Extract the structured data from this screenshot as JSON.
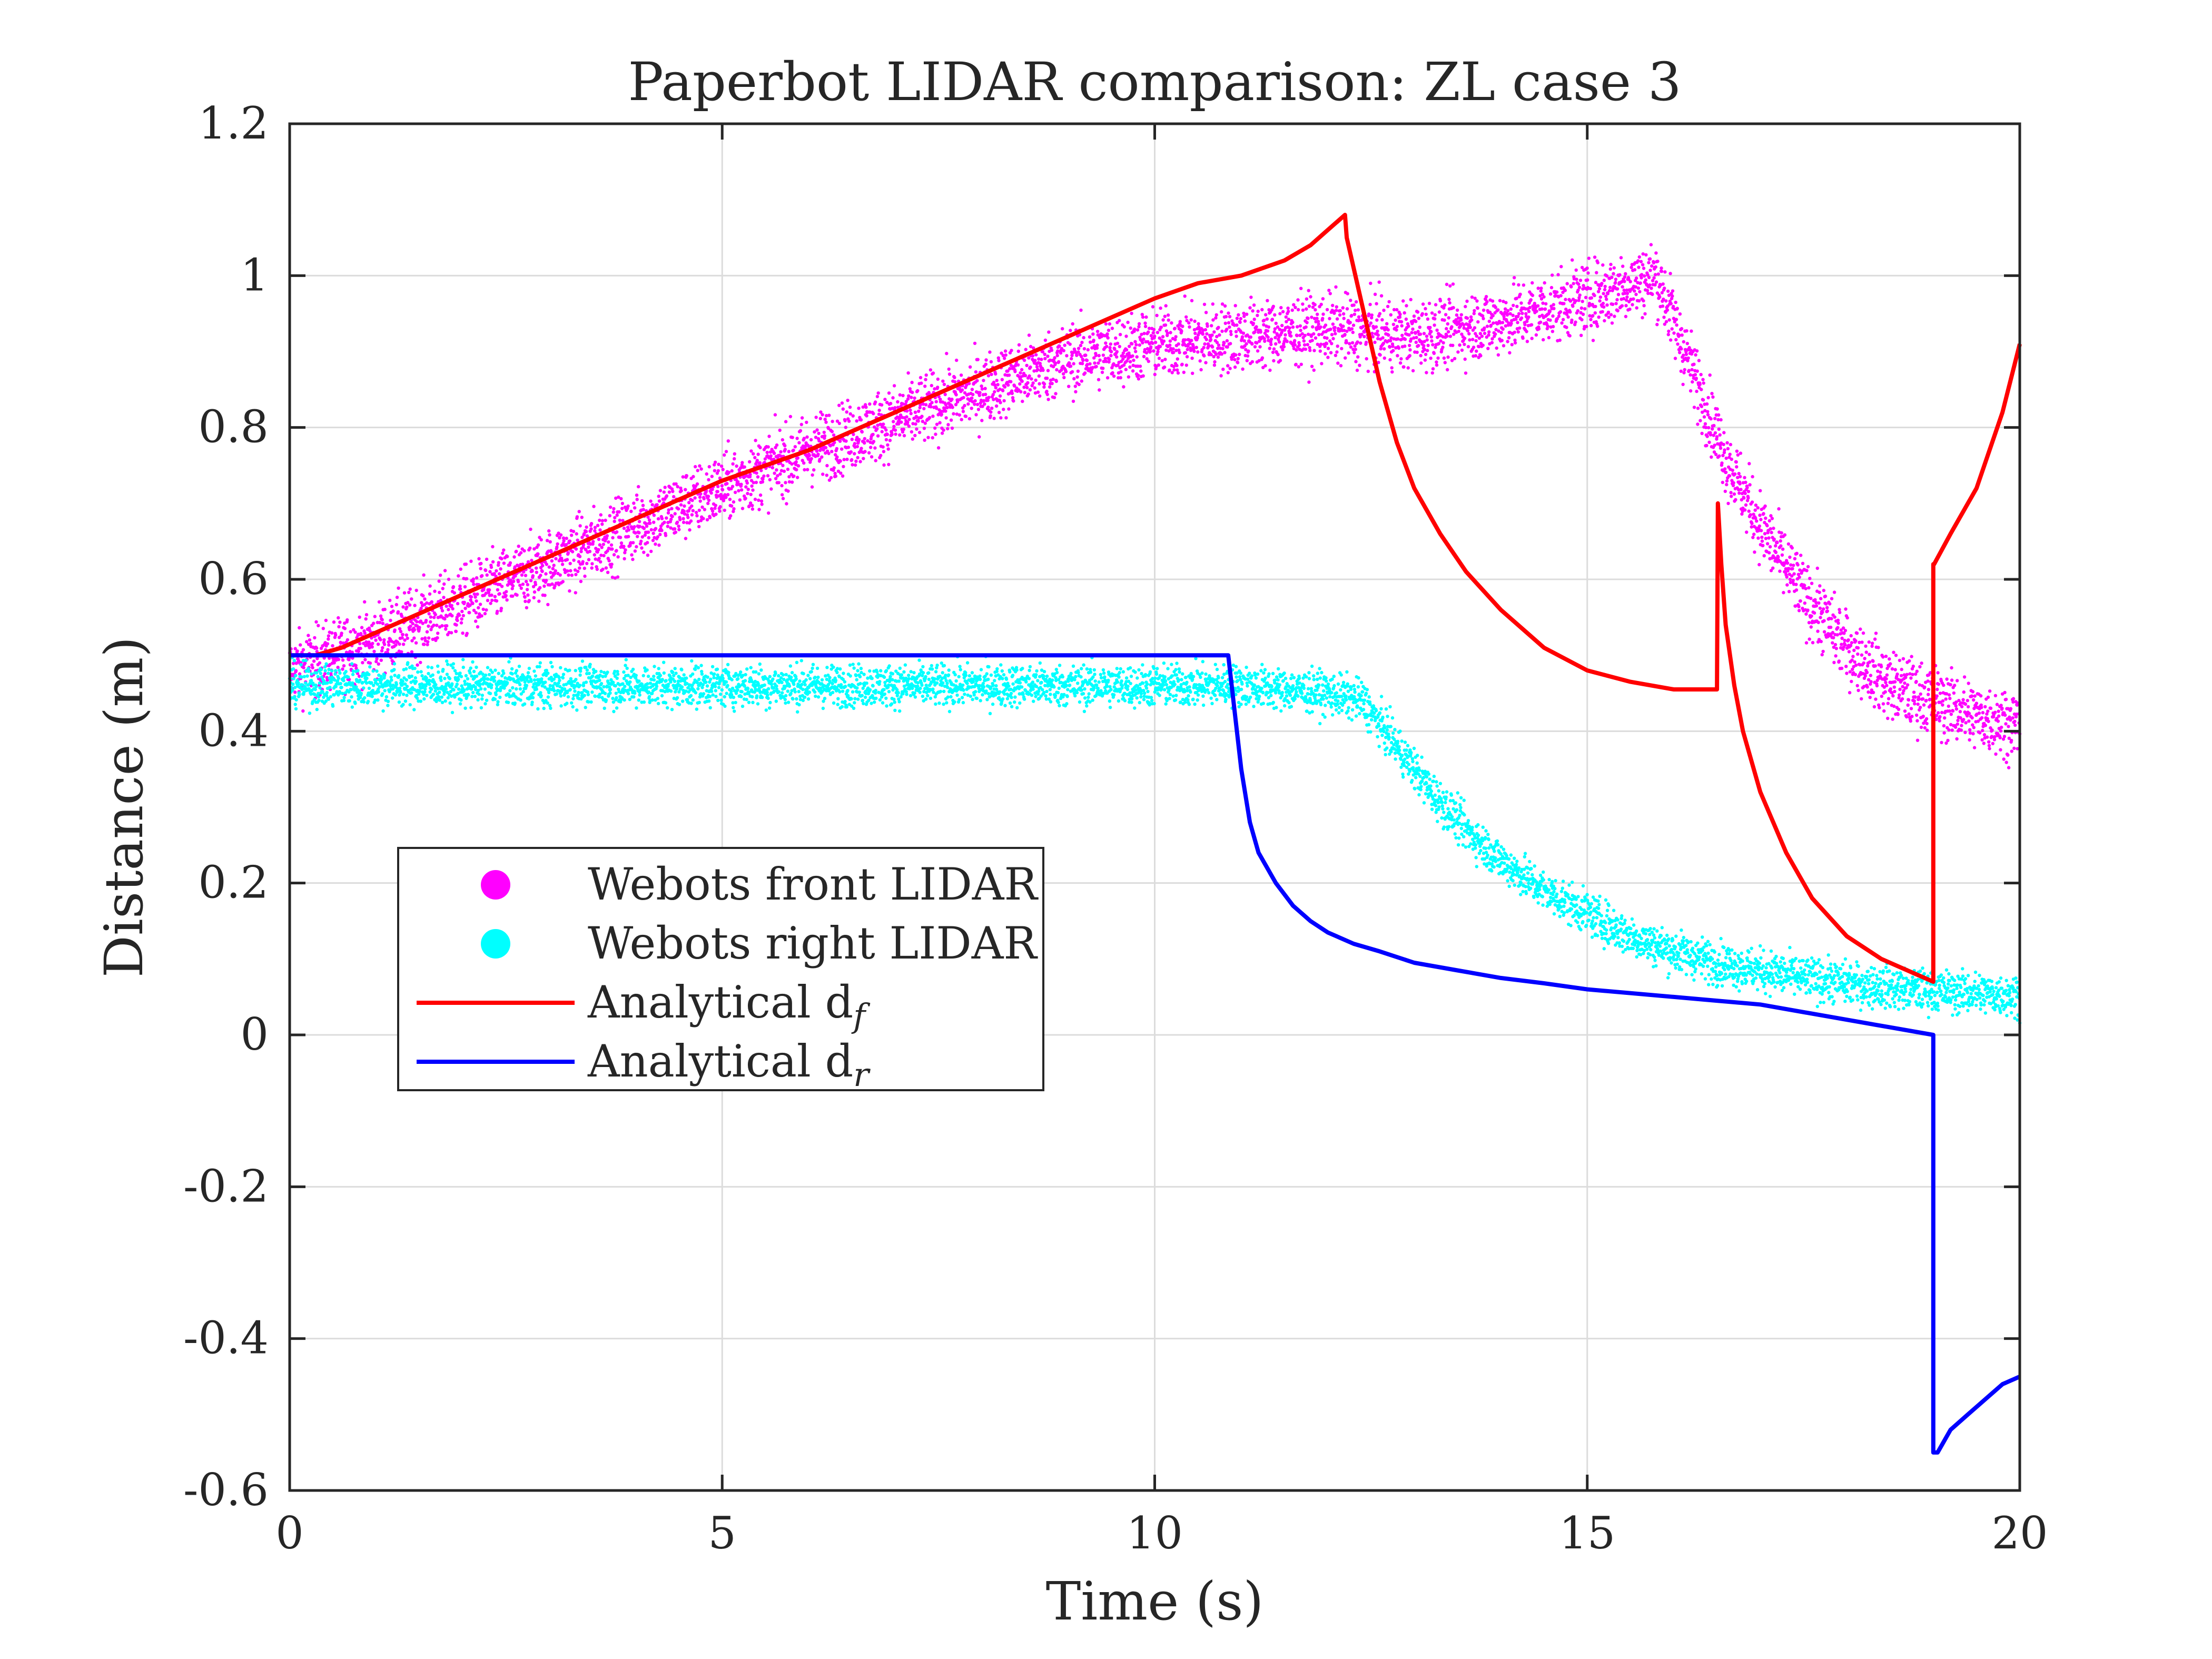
{
  "chart_data": {
    "type": "scatter",
    "title": "Paperbot LIDAR comparison: ZL case 3",
    "xlabel": "Time (s)",
    "ylabel": "Distance (m)",
    "xlim": [
      0,
      20
    ],
    "ylim": [
      -0.6,
      1.2
    ],
    "x_ticks": [
      0,
      5,
      10,
      15,
      20
    ],
    "x_tick_labels": [
      "0",
      "5",
      "10",
      "15",
      "20"
    ],
    "y_ticks": [
      -0.6,
      -0.4,
      -0.2,
      0,
      0.2,
      0.4,
      0.6,
      0.8,
      1,
      1.2
    ],
    "y_tick_labels": [
      "-0.6",
      "-0.4",
      "-0.2",
      "0",
      "0.2",
      "0.4",
      "0.6",
      "0.8",
      "1",
      "1.2"
    ],
    "grid": true,
    "legend_position": "center-left",
    "series": [
      {
        "name": "Webots front LIDAR",
        "kind": "scatter",
        "color": "#ff00ff",
        "noise_band": 0.05,
        "x": [
          0,
          1,
          2,
          3,
          4,
          5,
          6,
          7,
          8,
          9,
          10,
          11,
          12,
          13,
          14,
          15,
          15.8,
          16.2,
          16.6,
          17,
          17.5,
          18,
          18.5,
          19,
          19.5,
          20
        ],
        "y": [
          0.48,
          0.52,
          0.57,
          0.62,
          0.67,
          0.72,
          0.77,
          0.81,
          0.85,
          0.89,
          0.91,
          0.92,
          0.93,
          0.92,
          0.94,
          0.97,
          1.0,
          0.88,
          0.76,
          0.67,
          0.58,
          0.51,
          0.46,
          0.44,
          0.42,
          0.41
        ]
      },
      {
        "name": "Webots right LIDAR",
        "kind": "scatter",
        "color": "#00ffff",
        "noise_band": 0.03,
        "x": [
          0,
          2,
          4,
          6,
          8,
          10,
          11,
          12,
          12.4,
          12.8,
          13.2,
          13.6,
          14,
          14.5,
          15,
          15.5,
          16,
          16.5,
          17,
          17.5,
          18,
          18.5,
          19,
          19.5,
          20
        ],
        "y": [
          0.46,
          0.46,
          0.46,
          0.46,
          0.46,
          0.46,
          0.46,
          0.45,
          0.44,
          0.38,
          0.32,
          0.27,
          0.23,
          0.19,
          0.16,
          0.13,
          0.11,
          0.095,
          0.085,
          0.075,
          0.068,
          0.062,
          0.058,
          0.055,
          0.052
        ]
      },
      {
        "name": "Analytical d",
        "subscript": "f",
        "kind": "line",
        "color": "#ff0000",
        "x": [
          0,
          0.3,
          0.6,
          1,
          2,
          3,
          4,
          5,
          6,
          7,
          8,
          9,
          10,
          10.5,
          11,
          11.5,
          11.8,
          12.0,
          12.2,
          12.22,
          12.4,
          12.6,
          12.8,
          13.0,
          13.3,
          13.6,
          14.0,
          14.5,
          15.0,
          15.5,
          16.0,
          16.5,
          16.51,
          16.55,
          16.6,
          16.7,
          16.8,
          17.0,
          17.3,
          17.6,
          18.0,
          18.4,
          18.8,
          19.0,
          19.0,
          19.01,
          19.2,
          19.5,
          19.8,
          20.0
        ],
        "y": [
          0.5,
          0.5,
          0.51,
          0.53,
          0.58,
          0.63,
          0.68,
          0.73,
          0.77,
          0.82,
          0.87,
          0.92,
          0.97,
          0.99,
          1.0,
          1.02,
          1.04,
          1.06,
          1.08,
          1.05,
          0.96,
          0.86,
          0.78,
          0.72,
          0.66,
          0.61,
          0.56,
          0.51,
          0.48,
          0.465,
          0.455,
          0.455,
          0.7,
          0.62,
          0.54,
          0.46,
          0.4,
          0.32,
          0.24,
          0.18,
          0.13,
          0.1,
          0.08,
          0.07,
          0.62,
          0.62,
          0.66,
          0.72,
          0.82,
          0.91
        ]
      },
      {
        "name": "Analytical d",
        "subscript": "r",
        "kind": "line",
        "color": "#0000ff",
        "x": [
          0,
          2,
          4,
          6,
          8,
          10,
          10.6,
          10.85,
          10.9,
          11.0,
          11.1,
          11.2,
          11.4,
          11.6,
          11.8,
          12.0,
          12.3,
          12.6,
          13.0,
          13.5,
          14.0,
          14.5,
          15.0,
          15.5,
          16.0,
          16.5,
          17.0,
          17.5,
          18.0,
          18.5,
          19.0,
          19.0,
          19.05,
          19.2,
          19.4,
          19.6,
          19.8,
          20.0
        ],
        "y": [
          0.5,
          0.5,
          0.5,
          0.5,
          0.5,
          0.5,
          0.5,
          0.5,
          0.45,
          0.35,
          0.28,
          0.24,
          0.2,
          0.17,
          0.15,
          0.135,
          0.12,
          0.11,
          0.095,
          0.085,
          0.075,
          0.068,
          0.06,
          0.055,
          0.05,
          0.045,
          0.04,
          0.03,
          0.02,
          0.01,
          0.0,
          -0.55,
          -0.55,
          -0.52,
          -0.5,
          -0.48,
          -0.46,
          -0.45
        ]
      }
    ]
  }
}
